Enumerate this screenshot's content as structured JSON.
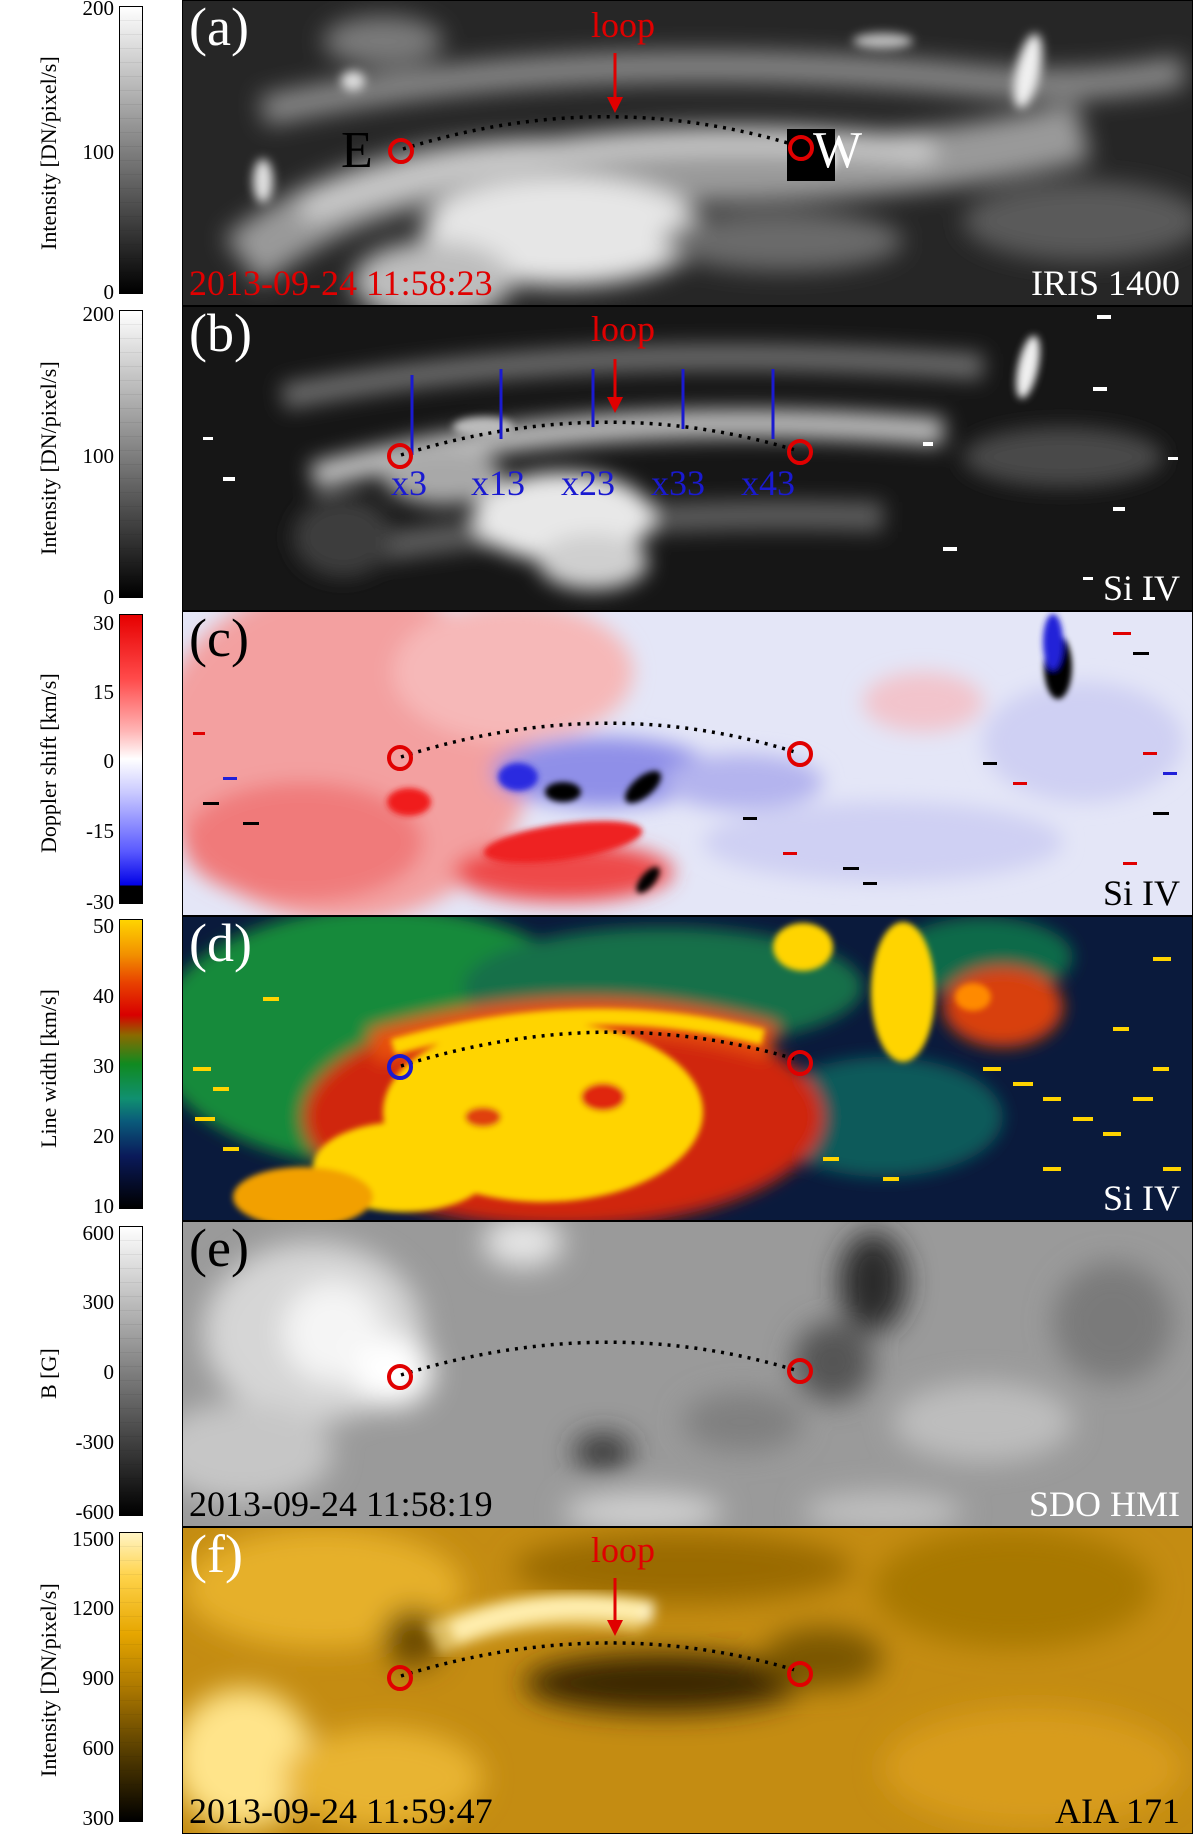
{
  "panels": [
    {
      "id": "a",
      "label": "(a)",
      "instrument": "IRIS 1400",
      "timestamp": "2013-09-24 11:58:23",
      "colorbar": {
        "label": "Intensity [DN/pixel/s]",
        "ticks": [
          "200",
          "100",
          "0"
        ],
        "colormap": "gray"
      },
      "annotations": {
        "loop": "loop",
        "east": "E",
        "west": "W"
      }
    },
    {
      "id": "b",
      "label": "(b)",
      "instrument": "Si IV",
      "colorbar": {
        "label": "Intensity [DN/pixel/s]",
        "ticks": [
          "200",
          "100",
          "0"
        ],
        "colormap": "gray"
      },
      "annotations": {
        "loop": "loop",
        "cuts": [
          "x3",
          "x13",
          "x23",
          "x33",
          "x43"
        ]
      }
    },
    {
      "id": "c",
      "label": "(c)",
      "instrument": "Si IV",
      "colorbar": {
        "label": "Doppler shift [km/s]",
        "ticks": [
          "30",
          "15",
          "0",
          "-15",
          "-30"
        ],
        "colormap": "blue-white-red"
      }
    },
    {
      "id": "d",
      "label": "(d)",
      "instrument": "Si IV",
      "colorbar": {
        "label": "Line width [km/s]",
        "ticks": [
          "50",
          "40",
          "30",
          "20",
          "10"
        ],
        "colormap": "rainbow"
      }
    },
    {
      "id": "e",
      "label": "(e)",
      "instrument": "SDO HMI",
      "timestamp": "2013-09-24 11:58:19",
      "colorbar": {
        "label": "B [G]",
        "ticks": [
          "600",
          "300",
          "0",
          "-300",
          "-600"
        ],
        "colormap": "gray"
      }
    },
    {
      "id": "f",
      "label": "(f)",
      "instrument": "AIA 171",
      "timestamp": "2013-09-24 11:59:47",
      "colorbar": {
        "label": "Intensity [DN/pixel/s]",
        "ticks": [
          "1500",
          "1200",
          "900",
          "600",
          "300"
        ],
        "colormap": "sdoaia171"
      },
      "annotations": {
        "loop": "loop"
      }
    }
  ],
  "colors": {
    "marker_red": "#e00000",
    "marker_blue": "#1a1ad0",
    "loop_path": "#000000"
  }
}
